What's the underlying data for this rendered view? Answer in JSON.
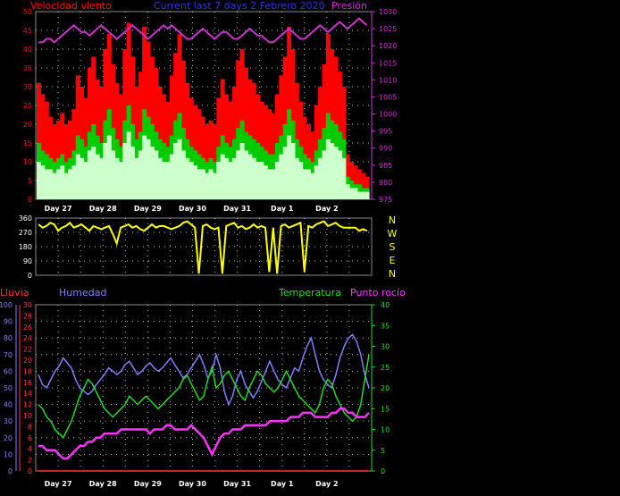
{
  "header": {
    "wind_label": "Velocidad viento",
    "title": "Current last 7 days 2 Febrero 2020",
    "pressure_label": "Presión"
  },
  "lower_header": {
    "rain_label": "Lluvia",
    "humidity_label": "Humedad",
    "temperature_label": "Temperatura",
    "dewpoint_label": "Punto rocío"
  },
  "compass": [
    "N",
    "W",
    "S",
    "E",
    "N"
  ],
  "colors": {
    "background": "#000000",
    "gust": "#ff0000",
    "wind_avg": "#00cc00",
    "wind_light": "#ccffcc",
    "pressure": "#cc33cc",
    "direction": "#ffff00",
    "humidity": "#8080ff",
    "temperature": "#22dd22",
    "dewpoint": "#ff33ff",
    "rain": "#ff3333",
    "grid": "#bbbbbb"
  },
  "chart_data": [
    {
      "type": "bar",
      "name_ref": "wind",
      "x_ticks": [
        "Day 27",
        "Day 28",
        "Day 29",
        "Day 30",
        "Day 31",
        "Day 1",
        "Day 2"
      ],
      "y_ticks": [
        "0",
        "5",
        "10",
        "15",
        "20",
        "25",
        "30",
        "35",
        "40",
        "45",
        "50"
      ],
      "ylim": [
        0,
        50
      ],
      "y2_ticks": [
        "975",
        "980",
        "985",
        "990",
        "995",
        "1000",
        "1005",
        "1010",
        "1015",
        "1020",
        "1025",
        "1030"
      ],
      "y2lim": [
        975,
        1030
      ],
      "series": [
        {
          "name": "Velocidad viento",
          "kind": "gust",
          "values": [
            31,
            28,
            26,
            22,
            20,
            21,
            23,
            20,
            21,
            24,
            33,
            30,
            27,
            35,
            38,
            32,
            30,
            40,
            44,
            36,
            31,
            28,
            40,
            47,
            38,
            30,
            34,
            46,
            42,
            38,
            35,
            30,
            28,
            26,
            33,
            39,
            44,
            37,
            31,
            27,
            25,
            24,
            22,
            20,
            21,
            20,
            27,
            32,
            28,
            26,
            30,
            37,
            40,
            35,
            32,
            31,
            28,
            26,
            25,
            24,
            23,
            28,
            33,
            38,
            46,
            40,
            31,
            26,
            22,
            20,
            18,
            25,
            30,
            36,
            44,
            40,
            38,
            34,
            30,
            12,
            10,
            9,
            8,
            7,
            6
          ]
        },
        {
          "name": "",
          "kind": "average",
          "values": [
            15,
            13,
            12,
            11,
            10,
            11,
            12,
            10,
            11,
            13,
            17,
            16,
            14,
            18,
            20,
            17,
            15,
            21,
            24,
            19,
            16,
            14,
            21,
            25,
            20,
            16,
            18,
            24,
            22,
            20,
            18,
            16,
            15,
            14,
            17,
            21,
            23,
            19,
            16,
            14,
            13,
            12,
            11,
            10,
            11,
            10,
            14,
            17,
            15,
            14,
            16,
            19,
            21,
            18,
            17,
            16,
            15,
            14,
            13,
            12,
            12,
            15,
            17,
            20,
            24,
            21,
            16,
            14,
            12,
            11,
            10,
            13,
            16,
            19,
            23,
            21,
            20,
            18,
            16,
            6,
            5,
            4,
            4,
            3,
            3
          ]
        },
        {
          "name": "",
          "kind": "light",
          "values": [
            10,
            9,
            8,
            8,
            7,
            8,
            9,
            7,
            8,
            9,
            12,
            11,
            10,
            13,
            14,
            12,
            11,
            15,
            17,
            13,
            11,
            10,
            15,
            18,
            14,
            11,
            13,
            17,
            16,
            14,
            13,
            11,
            10,
            10,
            12,
            15,
            16,
            13,
            11,
            10,
            9,
            8,
            8,
            7,
            8,
            7,
            10,
            12,
            11,
            10,
            11,
            13,
            15,
            13,
            12,
            11,
            10,
            10,
            9,
            8,
            8,
            10,
            12,
            14,
            17,
            15,
            11,
            10,
            8,
            8,
            7,
            9,
            11,
            13,
            16,
            15,
            14,
            13,
            11,
            4,
            3,
            3,
            2,
            2,
            2
          ]
        },
        {
          "name": "Presión",
          "kind": "pressure",
          "axis": "y2",
          "values": [
            1021,
            1021,
            1022,
            1022,
            1021,
            1022,
            1023,
            1024,
            1025,
            1026,
            1025,
            1024,
            1024,
            1023,
            1024,
            1025,
            1026,
            1025,
            1024,
            1023,
            1022,
            1023,
            1024,
            1025,
            1026,
            1025,
            1024,
            1023,
            1022,
            1023,
            1024,
            1025,
            1026,
            1025,
            1026,
            1025,
            1024,
            1023,
            1022,
            1022,
            1023,
            1024,
            1025,
            1024,
            1023,
            1022,
            1023,
            1024,
            1024,
            1023,
            1022,
            1022,
            1023,
            1024,
            1025,
            1024,
            1023,
            1023,
            1022,
            1021,
            1021,
            1022,
            1023,
            1024,
            1025,
            1024,
            1023,
            1022,
            1022,
            1023,
            1024,
            1025,
            1026,
            1025,
            1024,
            1025,
            1026,
            1027,
            1026,
            1025,
            1026,
            1027,
            1028,
            1027,
            1026
          ]
        }
      ]
    },
    {
      "type": "line",
      "name_ref": "direction",
      "y_ticks": [
        "0",
        "90",
        "180",
        "270",
        "360"
      ],
      "ylim": [
        0,
        360
      ],
      "series": [
        {
          "name": "",
          "values": [
            320,
            300,
            310,
            330,
            320,
            280,
            300,
            310,
            330,
            300,
            310,
            320,
            300,
            280,
            310,
            300,
            290,
            300,
            310,
            260,
            200,
            300,
            310,
            320,
            300,
            310,
            290,
            280,
            300,
            320,
            300,
            310,
            310,
            300,
            290,
            300,
            310,
            330,
            340,
            320,
            300,
            10,
            310,
            320,
            300,
            290,
            300,
            10,
            310,
            320,
            330,
            300,
            310,
            290,
            300,
            320,
            300,
            310,
            300,
            20,
            300,
            10,
            310,
            320,
            300,
            310,
            320,
            330,
            20,
            310,
            300,
            320,
            330,
            340,
            310,
            320,
            330,
            310,
            300,
            300,
            300,
            300,
            280,
            290,
            280
          ]
        }
      ]
    },
    {
      "type": "line",
      "name_ref": "climate",
      "x_ticks": [
        "Day 27",
        "Day 28",
        "Day 29",
        "Day 30",
        "Day 31",
        "Day 1",
        "Day 2"
      ],
      "y_ticks_humidity": [
        "0",
        "10",
        "20",
        "30",
        "40",
        "50",
        "60",
        "70",
        "80",
        "90",
        "100"
      ],
      "humidity_lim": [
        0,
        100
      ],
      "y_ticks_rain": [
        "0",
        "2",
        "4",
        "6",
        "8",
        "10",
        "12",
        "14",
        "16",
        "18",
        "20",
        "22",
        "24",
        "26",
        "28",
        "30"
      ],
      "rain_lim": [
        0,
        30
      ],
      "y_ticks_temp": [
        "0",
        "5",
        "10",
        "15",
        "20",
        "25",
        "30",
        "35",
        "40"
      ],
      "temp_lim": [
        0,
        40
      ],
      "series": [
        {
          "name": "Humedad",
          "axis": "humidity",
          "values": [
            58,
            52,
            50,
            55,
            60,
            63,
            68,
            65,
            62,
            55,
            50,
            48,
            46,
            48,
            52,
            55,
            58,
            62,
            60,
            58,
            60,
            64,
            66,
            62,
            58,
            60,
            63,
            65,
            62,
            60,
            62,
            65,
            68,
            64,
            60,
            56,
            58,
            62,
            66,
            70,
            64,
            56,
            60,
            70,
            62,
            48,
            40,
            45,
            55,
            60,
            52,
            48,
            44,
            48,
            54,
            60,
            66,
            60,
            55,
            52,
            50,
            56,
            62,
            60,
            68,
            75,
            80,
            70,
            60,
            55,
            52,
            50,
            58,
            68,
            75,
            80,
            82,
            78,
            70,
            58,
            50
          ]
        },
        {
          "name": "Temperatura",
          "axis": "temp",
          "values": [
            16,
            15,
            13,
            12,
            10,
            9,
            8,
            10,
            12,
            15,
            18,
            20,
            22,
            21,
            19,
            17,
            15,
            14,
            13,
            14,
            15,
            16,
            18,
            17,
            16,
            17,
            18,
            17,
            16,
            15,
            16,
            17,
            18,
            19,
            20,
            22,
            23,
            21,
            19,
            17,
            18,
            22,
            25,
            20,
            21,
            23,
            24,
            22,
            20,
            18,
            17,
            20,
            22,
            24,
            23,
            21,
            20,
            19,
            20,
            22,
            24,
            22,
            20,
            18,
            17,
            16,
            15,
            14,
            16,
            20,
            22,
            21,
            18,
            16,
            14,
            13,
            12,
            13,
            16,
            22,
            28
          ]
        },
        {
          "name": "Punto rocío",
          "axis": "temp",
          "values": [
            6,
            6,
            5,
            5,
            5,
            4,
            3,
            3,
            4,
            5,
            6,
            6,
            7,
            7,
            8,
            8,
            9,
            9,
            9,
            9,
            10,
            10,
            10,
            10,
            10,
            10,
            10,
            9,
            10,
            10,
            10,
            11,
            11,
            10,
            10,
            10,
            10,
            11,
            10,
            9,
            8,
            6,
            4,
            6,
            8,
            9,
            9,
            10,
            10,
            10,
            11,
            11,
            11,
            11,
            11,
            11,
            12,
            12,
            12,
            12,
            12,
            13,
            13,
            13,
            14,
            14,
            14,
            13,
            13,
            13,
            13,
            14,
            14,
            15,
            15,
            14,
            14,
            13,
            13,
            13,
            14
          ]
        },
        {
          "name": "Lluvia",
          "axis": "rain",
          "values": [
            0,
            0,
            0,
            0,
            0,
            0,
            0,
            0,
            0,
            0
          ]
        }
      ]
    }
  ]
}
